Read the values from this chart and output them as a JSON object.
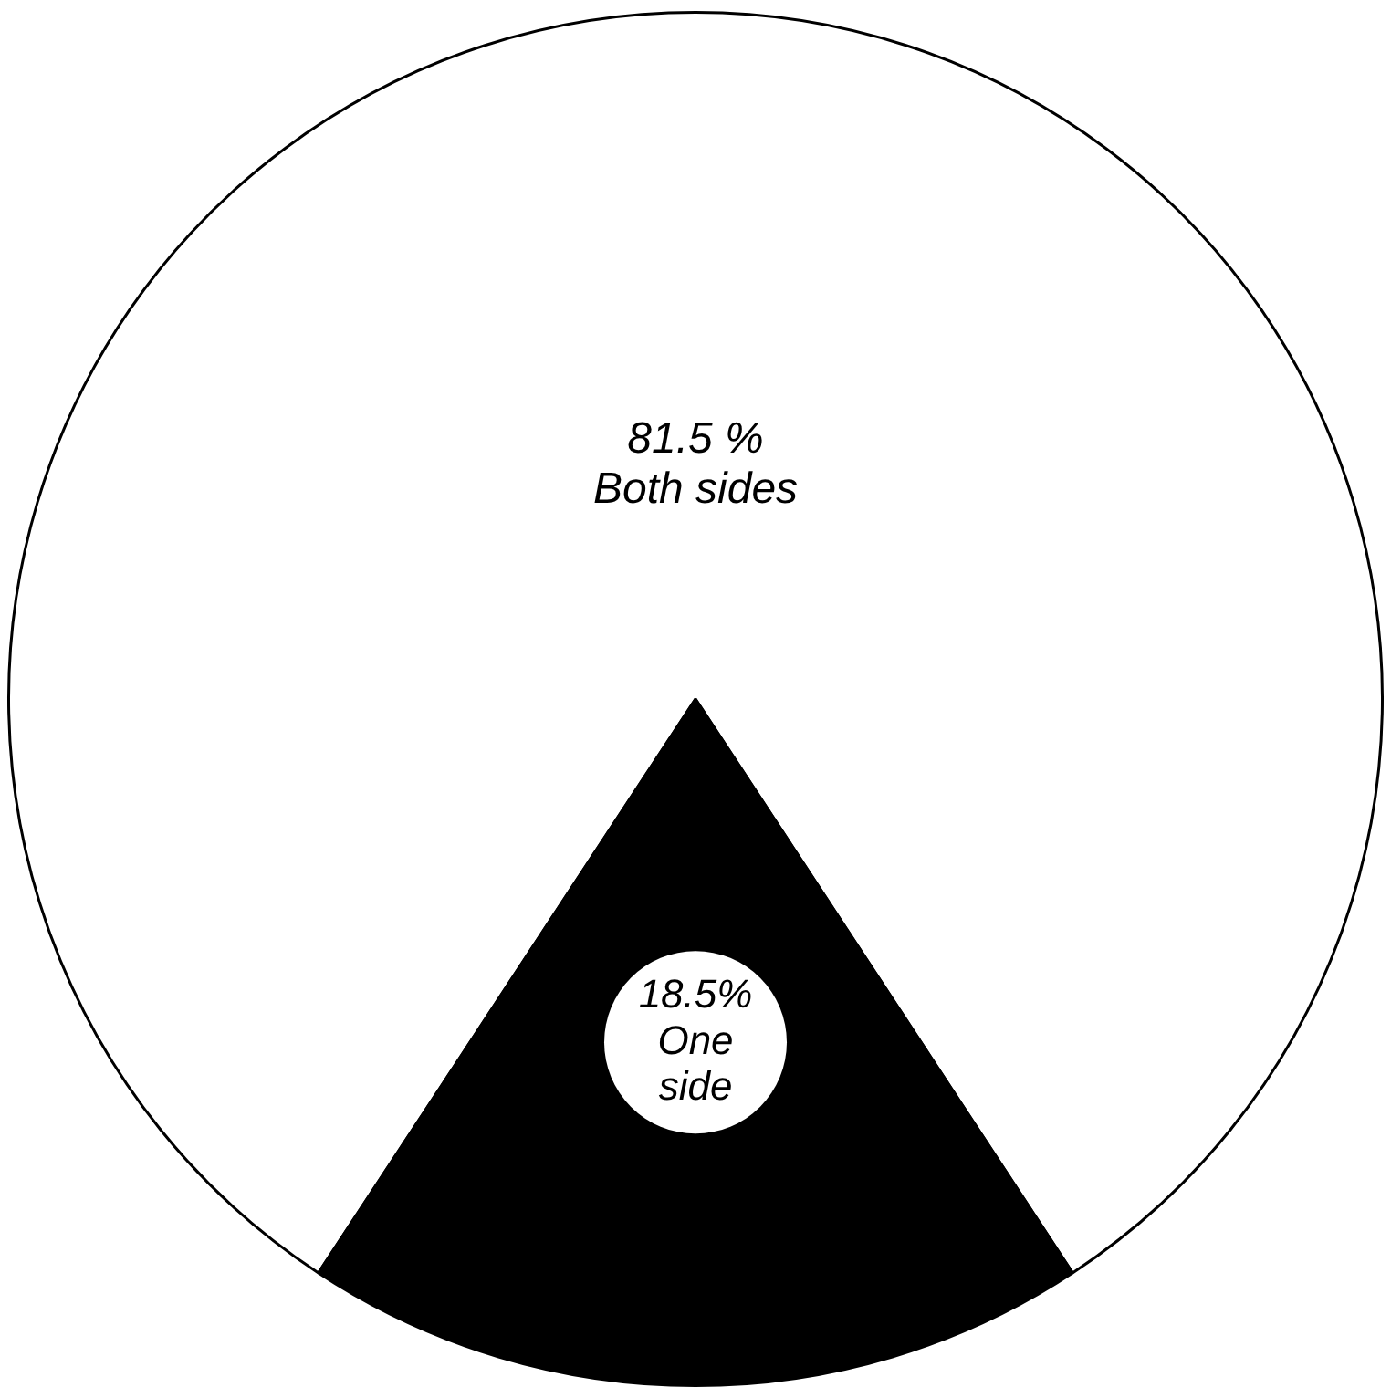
{
  "chart_data": {
    "type": "pie",
    "categories": [
      "Both sides",
      "One side"
    ],
    "values": [
      81.5,
      18.5
    ],
    "colors": [
      "#ffffff",
      "#000000"
    ],
    "value_labels": [
      "81.5 %",
      "18.5%"
    ],
    "legend": false
  }
}
